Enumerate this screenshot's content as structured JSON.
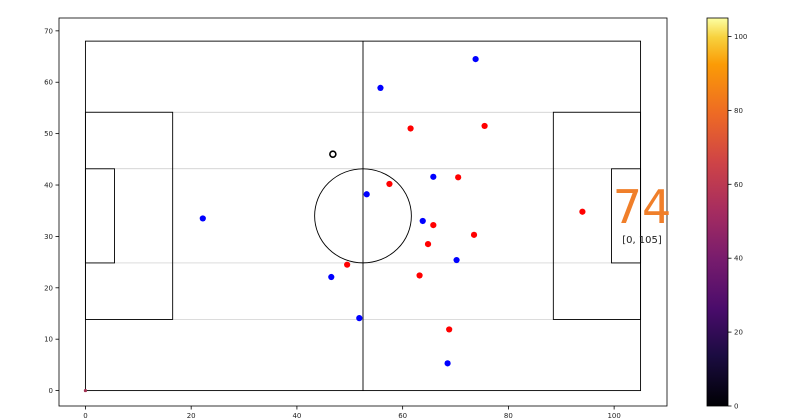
{
  "chart_data": {
    "type": "scatter",
    "title": "",
    "xlabel": "",
    "ylabel": "",
    "xlim": [
      -5,
      110
    ],
    "ylim": [
      -3,
      72.5
    ],
    "x_ticks": [
      0,
      20,
      40,
      60,
      80,
      100
    ],
    "y_ticks": [
      0,
      10,
      20,
      30,
      40,
      50,
      60,
      70
    ],
    "pitch": {
      "length": 105,
      "width": 68
    },
    "series": [
      {
        "color": "#ff0000",
        "points": [
          {
            "x": 61.5,
            "y": 51.0
          },
          {
            "x": 75.5,
            "y": 51.5
          },
          {
            "x": 57.5,
            "y": 40.2
          },
          {
            "x": 70.5,
            "y": 41.5
          },
          {
            "x": 65.8,
            "y": 32.2
          },
          {
            "x": 73.5,
            "y": 30.3
          },
          {
            "x": 64.8,
            "y": 28.5
          },
          {
            "x": 49.5,
            "y": 24.5
          },
          {
            "x": 63.2,
            "y": 22.4
          },
          {
            "x": 68.8,
            "y": 11.9
          },
          {
            "x": 94.0,
            "y": 34.8
          }
        ]
      },
      {
        "color": "#0000ff",
        "points": [
          {
            "x": 73.8,
            "y": 64.5
          },
          {
            "x": 55.8,
            "y": 58.9
          },
          {
            "x": 65.8,
            "y": 41.6
          },
          {
            "x": 53.2,
            "y": 38.2
          },
          {
            "x": 63.8,
            "y": 33.0
          },
          {
            "x": 22.2,
            "y": 33.5
          },
          {
            "x": 70.2,
            "y": 25.4
          },
          {
            "x": 46.5,
            "y": 22.1
          },
          {
            "x": 51.8,
            "y": 14.1
          },
          {
            "x": 68.5,
            "y": 5.3
          }
        ]
      }
    ],
    "ball": {
      "x": 46.8,
      "y": 46.0
    },
    "origin_marker": {
      "x": 0,
      "y": 0
    },
    "colorbar": {
      "min": 0,
      "max": 105,
      "ticks": [
        0,
        20,
        40,
        60,
        80,
        100
      ],
      "colormap": "inferno"
    },
    "annotation": {
      "value": "74",
      "range_text": "[0, 105]",
      "color": "#f07f2a"
    }
  }
}
